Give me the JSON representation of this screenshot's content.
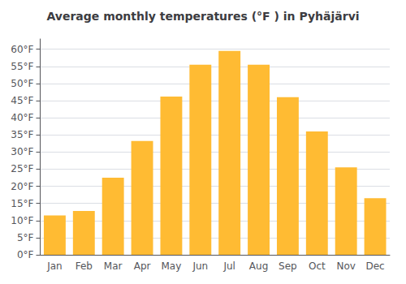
{
  "chart_data": {
    "type": "bar",
    "title": "Average monthly temperatures (°F ) in Pyhäjärvi",
    "categories": [
      "Jan",
      "Feb",
      "Mar",
      "Apr",
      "May",
      "Jun",
      "Jul",
      "Aug",
      "Sep",
      "Oct",
      "Nov",
      "Dec"
    ],
    "values": [
      11.5,
      12.8,
      22.5,
      33.2,
      46.2,
      55.5,
      59.5,
      55.5,
      46.0,
      36.0,
      25.5,
      16.5
    ],
    "color": "#FFBB33",
    "ylim": [
      0,
      63
    ],
    "yticks": [
      {
        "value": 0,
        "label": "0°F"
      },
      {
        "value": 5,
        "label": "5°F"
      },
      {
        "value": 10,
        "label": "10°F"
      },
      {
        "value": 15,
        "label": "15°F"
      },
      {
        "value": 20,
        "label": "20°F"
      },
      {
        "value": 25,
        "label": "25°F"
      },
      {
        "value": 30,
        "label": "30°F"
      },
      {
        "value": 35,
        "label": "35°F"
      },
      {
        "value": 40,
        "label": "40°F"
      },
      {
        "value": 45,
        "label": "45°F"
      },
      {
        "value": 50,
        "label": "50°F"
      },
      {
        "value": 55,
        "label": "55°F"
      },
      {
        "value": 60,
        "label": "60°F"
      }
    ],
    "grid": true
  }
}
